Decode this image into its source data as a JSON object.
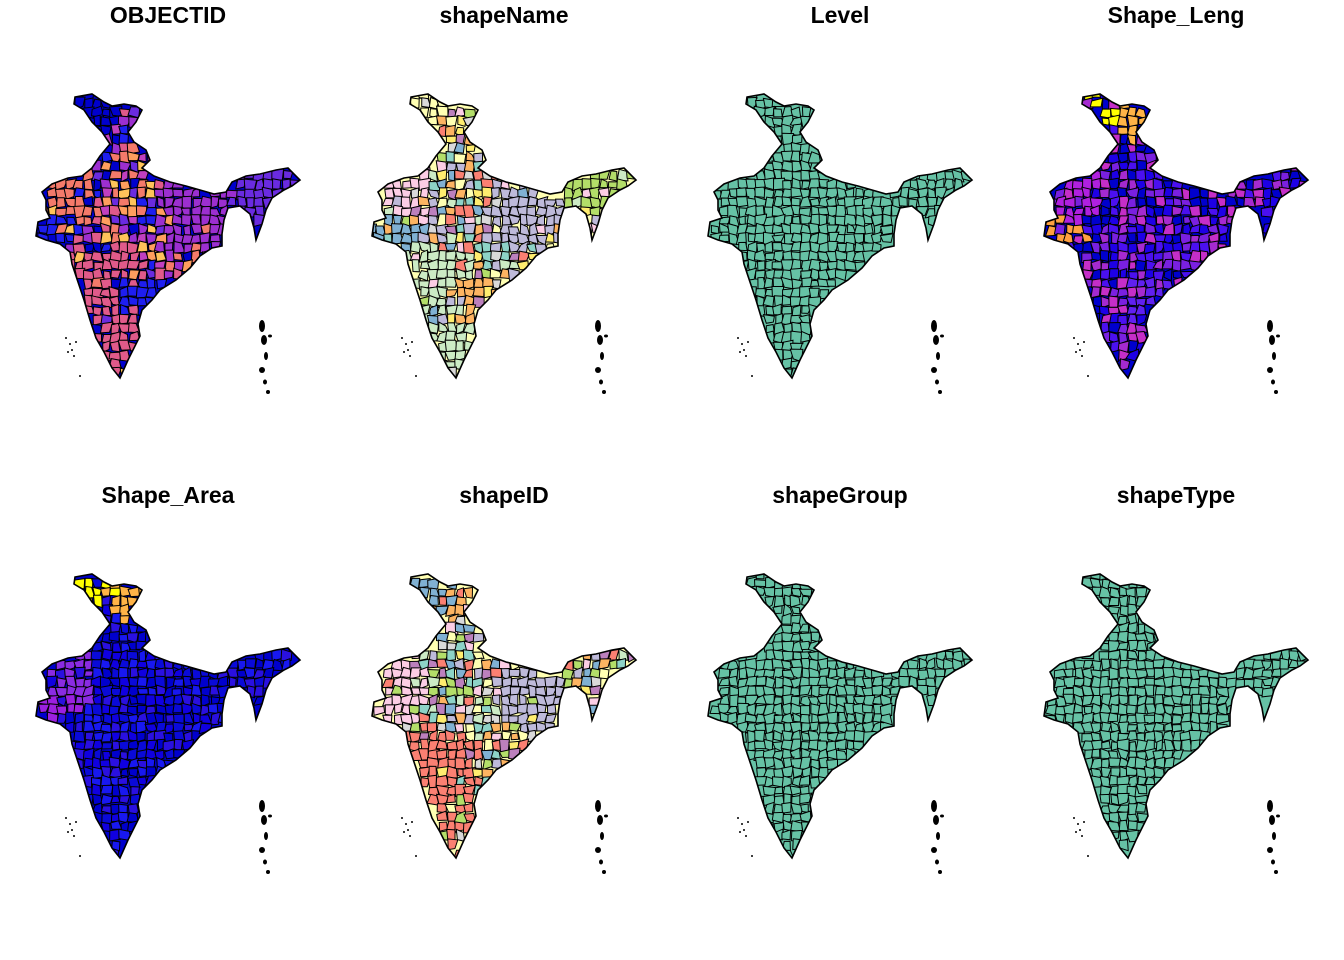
{
  "panels": [
    {
      "title": "OBJECTID",
      "palette": [
        "#0000CD",
        "#1E1EF0",
        "#6A2BE0",
        "#9C2FD0",
        "#C03FC0",
        "#E05A8A",
        "#F47A6A",
        "#FF9E5E",
        "#FFC35A"
      ],
      "patches": {
        "north": "#0000CD",
        "west": "#F47A6A",
        "gujarat": "#1E1EF0",
        "northeast": "#6A2BE0",
        "east": "#9C2FD0",
        "south": "#E05A8A",
        "andhra": "#1E1EF0"
      }
    },
    {
      "title": "shapeName",
      "palette": [
        "#FFFFB3",
        "#8DD3C7",
        "#BEBADA",
        "#FB8072",
        "#80B1D3",
        "#FDB462",
        "#B3DE69",
        "#FCCDE5",
        "#D9D9D9",
        "#BC80BD",
        "#CCEBC5",
        "#FFED6F"
      ],
      "patches": {
        "north": "#FFFFB3",
        "west": "#FCCDE5",
        "gujarat": "#80B1D3",
        "northeast": "#B3DE69",
        "east": "#BEBADA",
        "south": "#CCEBC5",
        "andhra": "#FDB462"
      }
    },
    {
      "title": "Level",
      "palette": [
        "#66C2A5"
      ],
      "patches": {}
    },
    {
      "title": "Shape_Leng",
      "palette": [
        "#0000CD",
        "#1E00E6",
        "#4B10F0",
        "#7A20E0",
        "#A52AD0",
        "#C52EC8"
      ],
      "patches": {
        "north": "#FFFF00",
        "north2": "#FFB347",
        "gujarat": "#FFA040",
        "west": "#B020E0",
        "andhra": "#6020F0"
      }
    },
    {
      "title": "Shape_Area",
      "palette": [
        "#0000CD",
        "#1000E0",
        "#1818F0",
        "#2A10E0",
        "#0A0AD8"
      ],
      "patches": {
        "north": "#FFFF00",
        "north2": "#FFB347",
        "gujarat": "#9B20E0",
        "west": "#8A2BE2"
      }
    },
    {
      "title": "shapeID",
      "palette": [
        "#FFFFB3",
        "#8DD3C7",
        "#BEBADA",
        "#FB8072",
        "#80B1D3",
        "#FDB462",
        "#B3DE69",
        "#FCCDE5",
        "#D9D9D9",
        "#BC80BD",
        "#CCEBC5",
        "#FFED6F"
      ],
      "patches": {
        "north": "#80B1D3",
        "north2": "#FDB462",
        "west": "#FCCDE5",
        "gujarat": "#FCCDE5",
        "east": "#BEBADA",
        "south": "#FB8072"
      }
    },
    {
      "title": "shapeGroup",
      "palette": [
        "#66C2A5"
      ],
      "patches": {}
    },
    {
      "title": "shapeType",
      "palette": [
        "#66C2A5"
      ],
      "patches": {}
    }
  ]
}
